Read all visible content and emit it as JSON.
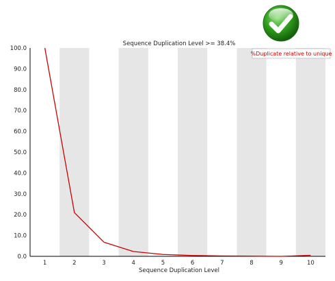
{
  "status_icon": "pass-check-icon",
  "colors": {
    "line": "#cc0000",
    "stripe": "#e6e6e6",
    "axis": "#000000",
    "badge_green": "#2e9e1c"
  },
  "chart_data": {
    "type": "line",
    "title": "Sequence Duplication Level >= 38.4%",
    "xlabel": "Sequence Duplication Level",
    "ylabel": "",
    "categories": [
      "1",
      "2",
      "3",
      "4",
      "5",
      "6",
      "7",
      "8",
      "9",
      "10"
    ],
    "series": [
      {
        "name": "%Duplicate relative to unique",
        "values": [
          100.0,
          21.0,
          6.8,
          2.3,
          0.9,
          0.4,
          0.2,
          0.1,
          0.0,
          0.5
        ]
      }
    ],
    "yticks": [
      "0.0",
      "10.0",
      "20.0",
      "30.0",
      "40.0",
      "50.0",
      "60.0",
      "70.0",
      "80.0",
      "90.0",
      "100.0"
    ],
    "ylim": [
      0,
      100
    ],
    "grid": false,
    "legend_position": "top-right",
    "alternating_column_shading": true
  }
}
